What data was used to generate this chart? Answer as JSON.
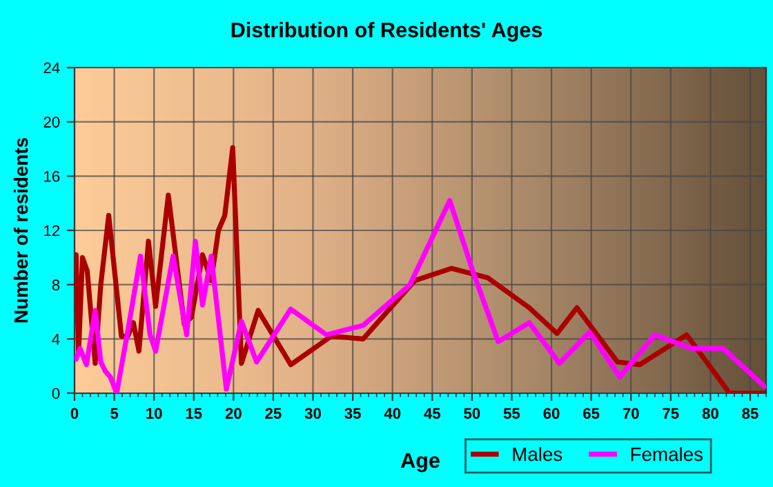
{
  "chart_data": {
    "type": "line",
    "title": "Distribution of Residents' Ages",
    "xlabel": "Age",
    "ylabel": "Number of residents",
    "xlim": [
      0,
      87
    ],
    "xticks": [
      0,
      5,
      10,
      15,
      20,
      25,
      30,
      35,
      40,
      45,
      50,
      55,
      60,
      65,
      70,
      75,
      80,
      85
    ],
    "ylim": [
      0,
      24
    ],
    "yticks": [
      0,
      4,
      8,
      12,
      16,
      20,
      24
    ],
    "grid": true,
    "legend": "bottom right",
    "marker": "none",
    "line_style": "solid",
    "series": [
      {
        "name": "Males",
        "color": "#aa0000",
        "x": [
          0.2,
          0.5,
          1.0,
          1.6,
          2.6,
          3.3,
          4.3,
          5.9,
          6.7,
          7.4,
          8.1,
          9.3,
          10.2,
          11.8,
          13.8,
          14.7,
          16.1,
          17.2,
          18.1,
          18.9,
          19.9,
          21.0,
          23.1,
          27.2,
          32.3,
          36.3,
          42.8,
          47.4,
          52.0,
          57.2,
          60.7,
          63.2,
          68.3,
          71.1,
          77.0,
          82.4,
          86.8
        ],
        "values": [
          10.2,
          2.9,
          10.0,
          9.0,
          2.2,
          8.0,
          13.1,
          4.2,
          4.2,
          5.2,
          3.1,
          11.2,
          6.4,
          14.6,
          5.1,
          5.6,
          10.2,
          8.3,
          12.0,
          13.1,
          18.1,
          2.2,
          6.1,
          2.1,
          4.2,
          4.0,
          8.3,
          9.2,
          8.5,
          6.3,
          4.4,
          6.3,
          2.3,
          2.1,
          4.3,
          0,
          0
        ]
      },
      {
        "name": "Females",
        "color": "#ff00ff",
        "x": [
          0.2,
          0.7,
          1.5,
          2.6,
          3.3,
          3.9,
          4.5,
          5.3,
          6.7,
          8.3,
          9.5,
          10.2,
          12.4,
          14.1,
          15.2,
          16.1,
          17.2,
          19.1,
          21.0,
          22.9,
          27.2,
          31.7,
          36.3,
          42.2,
          47.2,
          50.1,
          53.3,
          57.2,
          61.0,
          64.8,
          68.6,
          73.0,
          77.6,
          81.6,
          86.8
        ],
        "values": [
          2.5,
          3.3,
          2.1,
          6.1,
          2.3,
          1.6,
          1.2,
          0,
          4.6,
          10.1,
          4.3,
          3.1,
          10.1,
          4.3,
          11.2,
          6.5,
          10.1,
          0.3,
          5.3,
          2.3,
          6.2,
          4.3,
          5.0,
          8.0,
          14.2,
          9.0,
          3.8,
          5.2,
          2.2,
          4.5,
          1.2,
          4.3,
          3.3,
          3.3,
          0.5
        ]
      }
    ]
  }
}
